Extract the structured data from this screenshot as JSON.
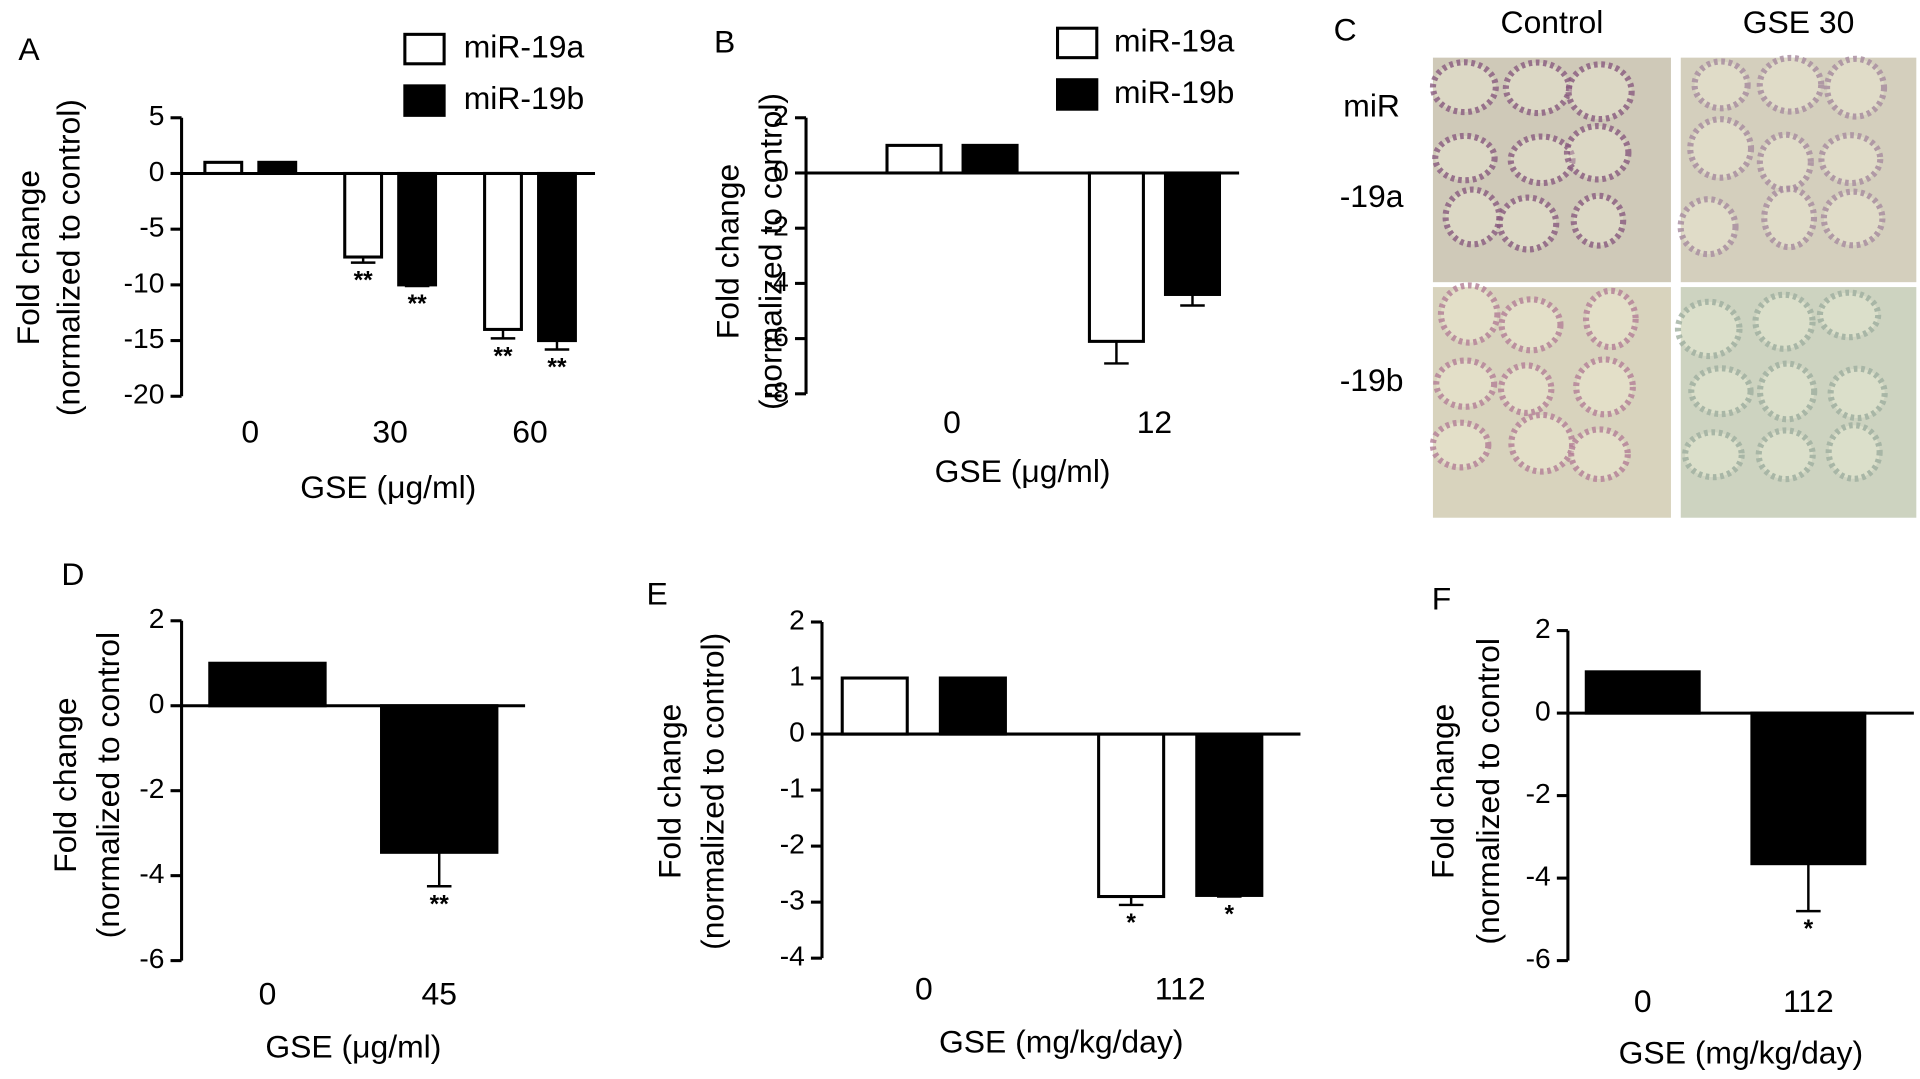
{
  "chart_data": [
    {
      "type": "bar",
      "panel_label": "A",
      "ylabel": [
        "Fold change",
        "(normalized to control)"
      ],
      "xlabel": "GSE (μg/ml)",
      "categories": [
        "0",
        "30",
        "60"
      ],
      "ylim": [
        -20,
        5
      ],
      "yticks": [
        -20,
        -15,
        -10,
        -5,
        0,
        5
      ],
      "series": [
        {
          "name": "miR-19a",
          "color": "#ffffff",
          "values": [
            1,
            -7.5,
            -14
          ],
          "errors": [
            null,
            0.5,
            0.8
          ],
          "stars": [
            null,
            "**",
            "**"
          ]
        },
        {
          "name": "miR-19b",
          "color": "#000000",
          "values": [
            1,
            -10,
            -15
          ],
          "errors": [
            null,
            0.1,
            0.8
          ],
          "stars": [
            null,
            "**",
            "**"
          ]
        }
      ]
    },
    {
      "type": "bar",
      "panel_label": "B",
      "ylabel": [
        "Fold change",
        "(normalized to control)"
      ],
      "xlabel": "GSE (μg/ml)",
      "categories": [
        "0",
        "12"
      ],
      "ylim": [
        -8,
        2
      ],
      "yticks": [
        -8,
        -6,
        -4,
        -2,
        0,
        2
      ],
      "series": [
        {
          "name": "miR-19a",
          "color": "#ffffff",
          "values": [
            1,
            -6.1
          ],
          "errors": [
            null,
            0.8
          ]
        },
        {
          "name": "miR-19b",
          "color": "#000000",
          "values": [
            1,
            -4.4
          ],
          "errors": [
            null,
            0.4
          ]
        }
      ]
    },
    {
      "type": "image_grid",
      "panel_label": "C",
      "columns": [
        "Control",
        "GSE 30"
      ],
      "row_labels": [
        "miR",
        "-19a",
        "-19b"
      ]
    },
    {
      "type": "bar",
      "panel_label": "D",
      "ylabel": [
        "Fold change",
        "(normalized to control"
      ],
      "xlabel": "GSE (μg/ml)",
      "categories": [
        "0",
        "45"
      ],
      "ylim": [
        -6,
        2
      ],
      "yticks": [
        -6,
        -4,
        -2,
        0,
        2
      ],
      "color": "#000000",
      "values": [
        1,
        -3.45
      ],
      "errors": [
        null,
        0.8
      ],
      "stars": [
        null,
        "**"
      ]
    },
    {
      "type": "bar",
      "panel_label": "E",
      "ylabel": [
        "Fold change",
        "(normalized to control)"
      ],
      "xlabel": "GSE (mg/kg/day)",
      "categories": [
        "0",
        "112"
      ],
      "ylim": [
        -4,
        2
      ],
      "yticks": [
        -4,
        -3,
        -2,
        -1,
        0,
        1,
        2
      ],
      "series": [
        {
          "name": "miR-19a",
          "color": "#ffffff",
          "values": [
            1,
            -2.9
          ],
          "errors": [
            null,
            0.15
          ],
          "stars": [
            null,
            "*"
          ]
        },
        {
          "name": "miR-19b",
          "color": "#000000",
          "values": [
            1,
            -2.88
          ],
          "errors": [
            null,
            0.02
          ],
          "stars": [
            null,
            "*"
          ]
        }
      ]
    },
    {
      "type": "bar",
      "panel_label": "F",
      "ylabel": [
        "Fold change",
        "(normalized to control"
      ],
      "xlabel": "GSE (mg/kg/day)",
      "categories": [
        "0",
        "112"
      ],
      "ylim": [
        -6,
        2
      ],
      "yticks": [
        -6,
        -4,
        -2,
        0,
        2
      ],
      "color": "#000000",
      "values": [
        1,
        -3.65
      ],
      "errors": [
        null,
        1.15
      ],
      "stars": [
        null,
        "*"
      ]
    }
  ]
}
